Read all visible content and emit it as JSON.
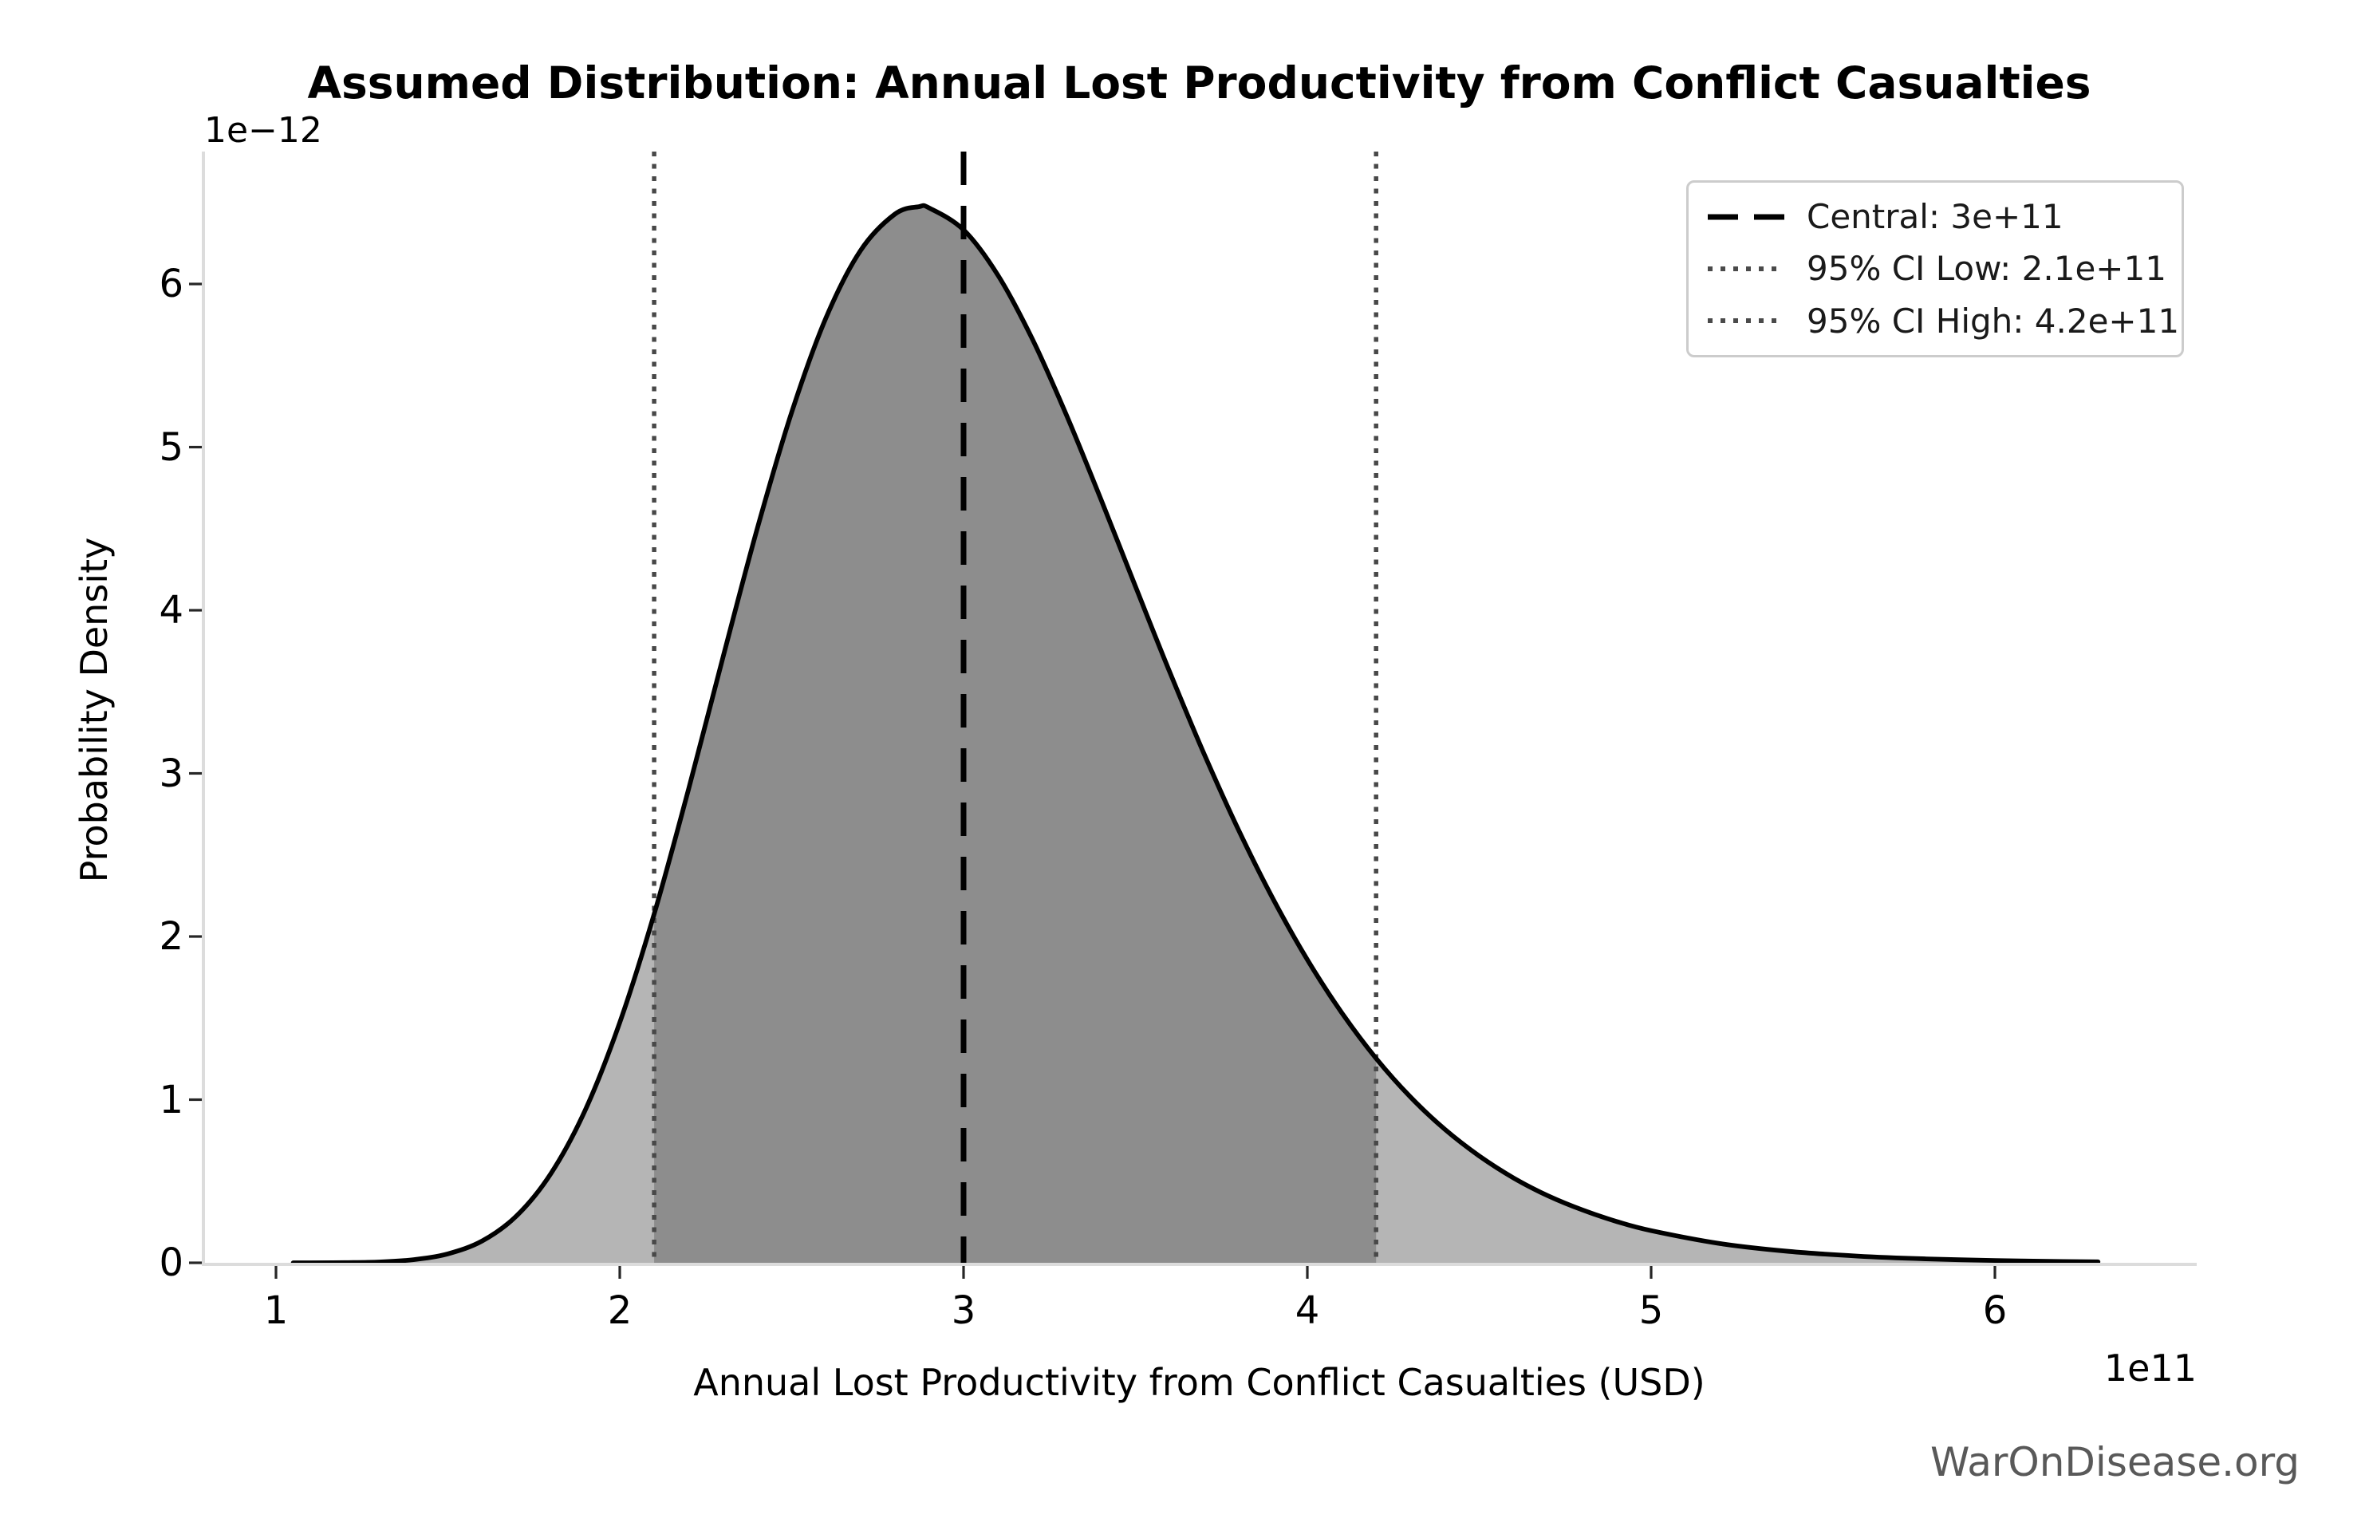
{
  "figure": {
    "watermark": "WarOnDisease.org",
    "background": "#ffffff"
  },
  "chart_data": {
    "type": "area",
    "title": "Assumed Distribution: Annual Lost Productivity from Conflict Casualties",
    "xlabel": "Annual Lost Productivity from Conflict Casualties (USD)",
    "ylabel": "Probability Density",
    "x_offset_text": "1e11",
    "y_offset_text": "1e−12",
    "grid": false,
    "legend_position": "upper right",
    "x_ticks": [
      1,
      2,
      3,
      4,
      5,
      6
    ],
    "y_ticks": [
      0,
      1,
      2,
      3,
      4,
      5,
      6
    ],
    "xlim_1e11": [
      0.79,
      6.59
    ],
    "ylim_1e12": [
      0,
      6.81
    ],
    "central_1e11": 3.0,
    "ci_low_1e11": 2.1,
    "ci_high_1e11": 4.2,
    "legend": {
      "items": [
        {
          "name": "central",
          "style": "dashed",
          "color": "#000000",
          "label": "Central: 3e+11"
        },
        {
          "name": "ci-low",
          "style": "dotted",
          "color": "#4a4a4a",
          "label": "95% CI Low: 2.1e+11"
        },
        {
          "name": "ci-high",
          "style": "dotted",
          "color": "#4a4a4a",
          "label": "95% CI High: 4.2e+11"
        }
      ]
    },
    "curve": {
      "x_1e11": [
        1.05,
        1.1,
        1.2,
        1.3,
        1.4,
        1.5,
        1.6,
        1.7,
        1.8,
        1.9,
        2.0,
        2.1,
        2.2,
        2.3,
        2.4,
        2.5,
        2.6,
        2.7,
        2.8,
        2.87,
        2.9,
        3.0,
        3.1,
        3.2,
        3.3,
        3.4,
        3.5,
        3.6,
        3.7,
        3.8,
        3.9,
        4.0,
        4.1,
        4.2,
        4.3,
        4.4,
        4.5,
        4.6,
        4.7,
        4.8,
        4.9,
        5.0,
        5.2,
        5.4,
        5.6,
        5.8,
        6.0,
        6.2,
        6.3
      ],
      "density_1e12": [
        0.0001,
        0.0002,
        0.001,
        0.005,
        0.019,
        0.055,
        0.134,
        0.288,
        0.548,
        0.938,
        1.473,
        2.138,
        2.902,
        3.71,
        4.501,
        5.213,
        5.793,
        6.204,
        6.428,
        6.474,
        6.466,
        6.332,
        6.054,
        5.663,
        5.193,
        4.678,
        4.146,
        3.62,
        3.118,
        2.653,
        2.232,
        1.858,
        1.533,
        1.253,
        1.016,
        0.818,
        0.655,
        0.52,
        0.411,
        0.324,
        0.253,
        0.197,
        0.118,
        0.07,
        0.041,
        0.024,
        0.014,
        0.008,
        0.006
      ]
    },
    "colors": {
      "curve": "#000000",
      "fill_light": "#b5b5b5",
      "fill_dark": "#8d8d8d",
      "vline_central": "#000000",
      "vline_ci": "#484848",
      "spine": "#dcdcdc",
      "tick": "#262626",
      "watermark": "#595959"
    }
  }
}
